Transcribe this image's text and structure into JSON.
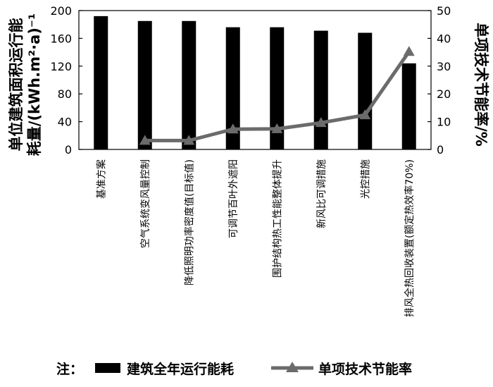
{
  "chart_data": {
    "type": "bar+line",
    "categories": [
      "基准方案",
      "空气系统变风量控制",
      "降低照明功率密度值(目标值)",
      "可调节百叶外遮阳",
      "围护结构热工性能整体提升",
      "新风比可调措施",
      "光控措施",
      "排风全热回收装置(额定热效率70%)"
    ],
    "series": [
      {
        "name": "建筑全年运行能耗",
        "type": "bar",
        "axis": "left",
        "color": "#000000",
        "values": [
          192,
          185,
          185,
          176,
          176,
          171,
          168,
          124
        ]
      },
      {
        "name": "单项技术节能率",
        "type": "line",
        "axis": "right",
        "color": "#6b6b6b",
        "marker": "triangle",
        "values": [
          null,
          3.2,
          3.2,
          7.3,
          7.4,
          9.6,
          12.4,
          35.2
        ]
      }
    ],
    "ylabel_left_line1": "单位建筑面积运行能",
    "ylabel_left_line2": "耗量/(kWh.m²·a)⁻¹",
    "ylabel_right": "单项技术节能率/%",
    "ylim_left": [
      0,
      200
    ],
    "yticks_left": [
      "0",
      "40",
      "80",
      "120",
      "160",
      "200"
    ],
    "ylim_right": [
      0,
      50
    ],
    "yticks_right": [
      "0",
      "10",
      "20",
      "30",
      "40",
      "50"
    ],
    "grid": false,
    "legend_prefix": "注：",
    "legend_placement": "bottom"
  }
}
